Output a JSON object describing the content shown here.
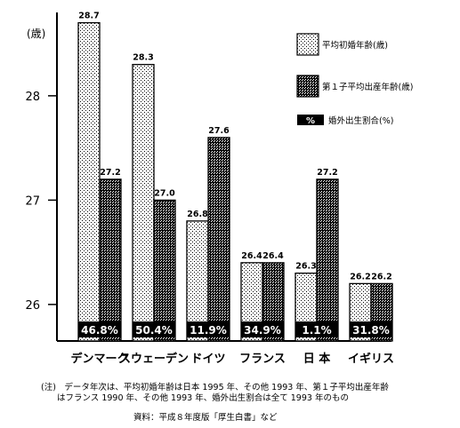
{
  "chart_data": {
    "type": "bar",
    "y_unit": "(歳)",
    "categories": [
      "デンマーク",
      "スウェーデン",
      "ドイツ",
      "フランス",
      "日 本",
      "イギリス"
    ],
    "ylim": [
      25.65,
      28.85
    ],
    "yticks": [
      26,
      27,
      28
    ],
    "series": [
      {
        "name": "平均初婚年齢(歳)",
        "pattern": "dots-light",
        "values": [
          28.7,
          28.3,
          26.8,
          26.4,
          26.3,
          26.2
        ],
        "labels": [
          "28.7",
          "28.3",
          "26.8",
          "26.4",
          "26.3",
          "26.2"
        ]
      },
      {
        "name": "第１子平均出産年齢(歳)",
        "pattern": "dots-dark",
        "values": [
          27.2,
          27.0,
          27.6,
          26.4,
          27.2,
          26.2
        ],
        "labels": [
          "27.2",
          "27.0",
          "27.6",
          "26.4",
          "27.2",
          "26.2"
        ]
      }
    ],
    "extra_series": {
      "name": "婚外出生割合(%)",
      "legend_symbol": "%",
      "values": [
        46.8,
        50.4,
        11.9,
        34.9,
        1.1,
        31.8
      ],
      "labels": [
        "46.8%",
        "50.4%",
        "11.9%",
        "34.9%",
        "1.1%",
        "31.8%"
      ]
    },
    "legend_position": "top-right",
    "grid": false
  },
  "notes": {
    "line1": "(注)　データ年次は、平均初婚年齢は日本 1995 年、その他 1993 年、第１子平均出産年齢",
    "line2": "はフランス 1990 年、その他 1993 年、婚外出生割合は全て 1993 年のもの",
    "source": "資料：平成８年度版「厚生白書」など"
  }
}
